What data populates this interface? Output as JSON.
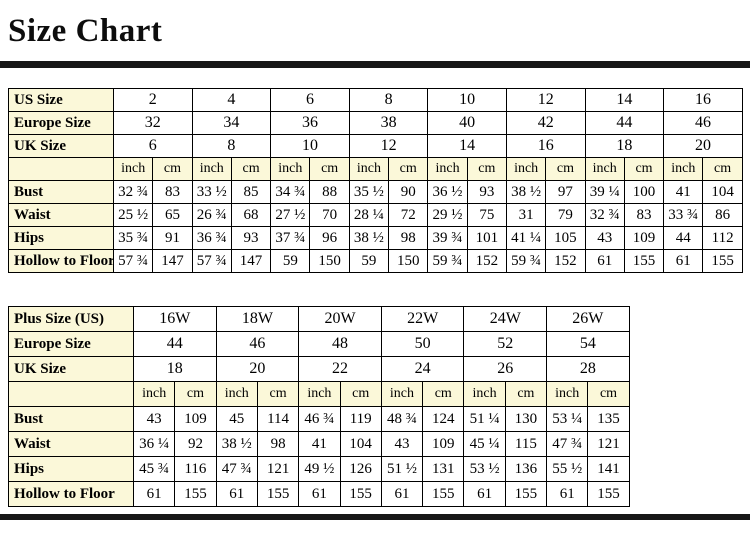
{
  "page": {
    "title": "Size Chart"
  },
  "chart_data": [
    {
      "type": "table",
      "unit_headers": [
        "inch",
        "cm"
      ],
      "size_system_rows": [
        {
          "label": "US Size",
          "sizes": [
            "2",
            "4",
            "6",
            "8",
            "10",
            "12",
            "14",
            "16"
          ]
        },
        {
          "label": "Europe Size",
          "sizes": [
            "32",
            "34",
            "36",
            "38",
            "40",
            "42",
            "44",
            "46"
          ]
        },
        {
          "label": "UK Size",
          "sizes": [
            "6",
            "8",
            "10",
            "12",
            "14",
            "16",
            "18",
            "20"
          ]
        }
      ],
      "measurement_rows": [
        {
          "label": "Bust",
          "values": [
            "32 ¾",
            "83",
            "33 ½",
            "85",
            "34 ¾",
            "88",
            "35 ½",
            "90",
            "36 ½",
            "93",
            "38 ½",
            "97",
            "39 ¼",
            "100",
            "41",
            "104"
          ]
        },
        {
          "label": "Waist",
          "values": [
            "25 ½",
            "65",
            "26 ¾",
            "68",
            "27 ½",
            "70",
            "28 ¼",
            "72",
            "29 ½",
            "75",
            "31",
            "79",
            "32 ¾",
            "83",
            "33 ¾",
            "86"
          ]
        },
        {
          "label": "Hips",
          "values": [
            "35 ¾",
            "91",
            "36 ¾",
            "93",
            "37 ¾",
            "96",
            "38 ½",
            "98",
            "39 ¾",
            "101",
            "41 ¼",
            "105",
            "43",
            "109",
            "44",
            "112"
          ]
        },
        {
          "label": "Hollow to Floor",
          "values": [
            "57 ¾",
            "147",
            "57 ¾",
            "147",
            "59",
            "150",
            "59",
            "150",
            "59 ¾",
            "152",
            "59 ¾",
            "152",
            "61",
            "155",
            "61",
            "155"
          ]
        }
      ]
    },
    {
      "type": "table",
      "unit_headers": [
        "inch",
        "cm"
      ],
      "size_system_rows": [
        {
          "label": "Plus Size (US)",
          "sizes": [
            "16W",
            "18W",
            "20W",
            "22W",
            "24W",
            "26W"
          ]
        },
        {
          "label": "Europe Size",
          "sizes": [
            "44",
            "46",
            "48",
            "50",
            "52",
            "54"
          ]
        },
        {
          "label": "UK Size",
          "sizes": [
            "18",
            "20",
            "22",
            "24",
            "26",
            "28"
          ]
        }
      ],
      "measurement_rows": [
        {
          "label": "Bust",
          "values": [
            "43",
            "109",
            "45",
            "114",
            "46 ¾",
            "119",
            "48 ¾",
            "124",
            "51 ¼",
            "130",
            "53 ¼",
            "135"
          ]
        },
        {
          "label": "Waist",
          "values": [
            "36 ¼",
            "92",
            "38 ½",
            "98",
            "41",
            "104",
            "43",
            "109",
            "45 ¼",
            "115",
            "47 ¾",
            "121"
          ]
        },
        {
          "label": "Hips",
          "values": [
            "45 ¾",
            "116",
            "47 ¾",
            "121",
            "49 ½",
            "126",
            "51 ½",
            "131",
            "53 ½",
            "136",
            "55 ½",
            "141"
          ]
        },
        {
          "label": "Hollow to Floor",
          "values": [
            "61",
            "155",
            "61",
            "155",
            "61",
            "155",
            "61",
            "155",
            "61",
            "155",
            "61",
            "155"
          ]
        }
      ]
    }
  ]
}
